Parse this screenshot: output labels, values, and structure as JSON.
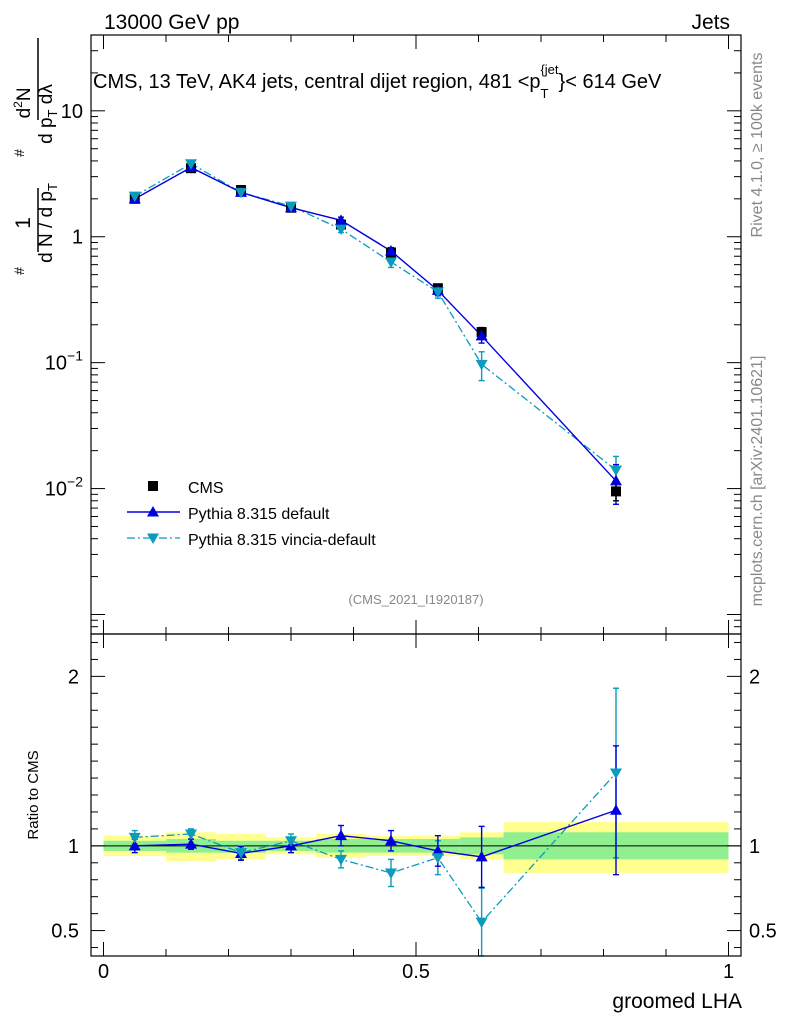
{
  "header": {
    "left": "13000 GeV pp",
    "right": "Jets"
  },
  "side": {
    "rivet": "Rivet 4.1.0, ≥ 100k events",
    "mcplots": "mcplots.cern.ch [arXiv:2401.10621]"
  },
  "colors": {
    "cms": "#000000",
    "pythia_default": "#0000dd",
    "pythia_vincia": "#0a9bbd",
    "band_inner": "#90f090",
    "band_outer": "#ffff90"
  },
  "chart_data": [
    {
      "type": "line",
      "title": "CMS, 13 TeV, AK4 jets, central dijet region, 481 < p_T^{jet} < 614 GeV",
      "title_parts": {
        "main": "CMS, 13 TeV, AK4 jets, central dijet region, 481 <p",
        "sub": "T",
        "sup": "{jet",
        "end": "}< 614 GeV"
      },
      "ylabel": "1/(dN/dp_T) · d²N/(dp_T dλ)",
      "yscale": "log",
      "ylim": [
        0.0007,
        40
      ],
      "xlim": [
        -0.02,
        1.02
      ],
      "watermark": "(CMS_2021_I1920187)",
      "y_ticks": [
        {
          "value": 0.01,
          "base": "10",
          "exp": "−2"
        },
        {
          "value": 0.1,
          "base": "10",
          "exp": "−1"
        },
        {
          "value": 1,
          "base": "1",
          "exp": ""
        },
        {
          "value": 10,
          "base": "10",
          "exp": ""
        }
      ],
      "legend": [
        "CMS",
        "Pythia 8.315 default",
        "Pythia 8.315 vincia-default"
      ],
      "series": [
        {
          "name": "CMS",
          "x": [
            0.05,
            0.14,
            0.22,
            0.3,
            0.38,
            0.46,
            0.535,
            0.605,
            0.82
          ],
          "y": [
            2.0,
            3.5,
            2.35,
            1.7,
            1.25,
            0.75,
            0.39,
            0.175,
            0.0095
          ],
          "err": [
            0.12,
            0.2,
            0.12,
            0.1,
            0.07,
            0.06,
            0.03,
            0.015,
            0.0015
          ]
        },
        {
          "name": "Pythia 8.315 default",
          "x": [
            0.05,
            0.14,
            0.22,
            0.3,
            0.38,
            0.46,
            0.535,
            0.605,
            0.82
          ],
          "y": [
            2.0,
            3.55,
            2.25,
            1.7,
            1.35,
            0.77,
            0.375,
            0.163,
            0.0115
          ],
          "err": [
            0.08,
            0.12,
            0.08,
            0.07,
            0.08,
            0.05,
            0.035,
            0.02,
            0.004
          ]
        },
        {
          "name": "Pythia 8.315 vincia-default",
          "x": [
            0.05,
            0.14,
            0.22,
            0.3,
            0.38,
            0.46,
            0.535,
            0.605,
            0.82
          ],
          "y": [
            2.1,
            3.8,
            2.25,
            1.75,
            1.15,
            0.63,
            0.365,
            0.097,
            0.014
          ],
          "err": [
            0.1,
            0.15,
            0.08,
            0.08,
            0.07,
            0.06,
            0.04,
            0.025,
            0.004
          ]
        }
      ]
    },
    {
      "type": "line",
      "ylabel": "Ratio to CMS",
      "xlabel": "groomed LHA",
      "ylim": [
        0.35,
        2.25
      ],
      "xlim": [
        -0.02,
        1.02
      ],
      "x_ticks": [
        {
          "value": 0,
          "label": "0"
        },
        {
          "value": 0.5,
          "label": "0.5"
        },
        {
          "value": 1,
          "label": "1"
        }
      ],
      "y_ticks": [
        {
          "value": 0.5,
          "label": "0.5"
        },
        {
          "value": 1,
          "label": "1"
        },
        {
          "value": 2,
          "label": "2"
        }
      ],
      "bands": [
        {
          "x0": 0.0,
          "x1": 0.1,
          "in_lo": 0.97,
          "in_hi": 1.03,
          "out_lo": 0.94,
          "out_hi": 1.06
        },
        {
          "x0": 0.1,
          "x1": 0.18,
          "in_lo": 0.96,
          "in_hi": 1.04,
          "out_lo": 0.91,
          "out_hi": 1.08
        },
        {
          "x0": 0.18,
          "x1": 0.26,
          "in_lo": 0.96,
          "in_hi": 1.03,
          "out_lo": 0.92,
          "out_hi": 1.07
        },
        {
          "x0": 0.26,
          "x1": 0.34,
          "in_lo": 0.97,
          "in_hi": 1.03,
          "out_lo": 0.95,
          "out_hi": 1.05
        },
        {
          "x0": 0.34,
          "x1": 0.42,
          "in_lo": 0.96,
          "in_hi": 1.04,
          "out_lo": 0.93,
          "out_hi": 1.07
        },
        {
          "x0": 0.42,
          "x1": 0.5,
          "in_lo": 0.96,
          "in_hi": 1.04,
          "out_lo": 0.94,
          "out_hi": 1.06
        },
        {
          "x0": 0.5,
          "x1": 0.57,
          "in_lo": 0.96,
          "in_hi": 1.04,
          "out_lo": 0.94,
          "out_hi": 1.06
        },
        {
          "x0": 0.57,
          "x1": 0.64,
          "in_lo": 0.95,
          "in_hi": 1.05,
          "out_lo": 0.92,
          "out_hi": 1.08
        },
        {
          "x0": 0.64,
          "x1": 1.0,
          "in_lo": 0.92,
          "in_hi": 1.08,
          "out_lo": 0.84,
          "out_hi": 1.14
        }
      ],
      "series": [
        {
          "name": "Pythia 8.315 default",
          "x": [
            0.05,
            0.14,
            0.22,
            0.3,
            0.38,
            0.46,
            0.535,
            0.605,
            0.82
          ],
          "y": [
            1.0,
            1.01,
            0.955,
            1.0,
            1.06,
            1.03,
            0.97,
            0.935,
            1.21
          ],
          "err": [
            0.04,
            0.03,
            0.04,
            0.04,
            0.06,
            0.06,
            0.09,
            0.18,
            0.38
          ]
        },
        {
          "name": "Pythia 8.315 vincia-default",
          "x": [
            0.05,
            0.14,
            0.22,
            0.3,
            0.38,
            0.46,
            0.535,
            0.605,
            0.82
          ],
          "y": [
            1.05,
            1.07,
            0.96,
            1.03,
            0.92,
            0.84,
            0.93,
            0.55,
            1.43
          ],
          "err": [
            0.04,
            0.03,
            0.04,
            0.04,
            0.05,
            0.08,
            0.1,
            0.2,
            0.5
          ]
        }
      ]
    }
  ]
}
